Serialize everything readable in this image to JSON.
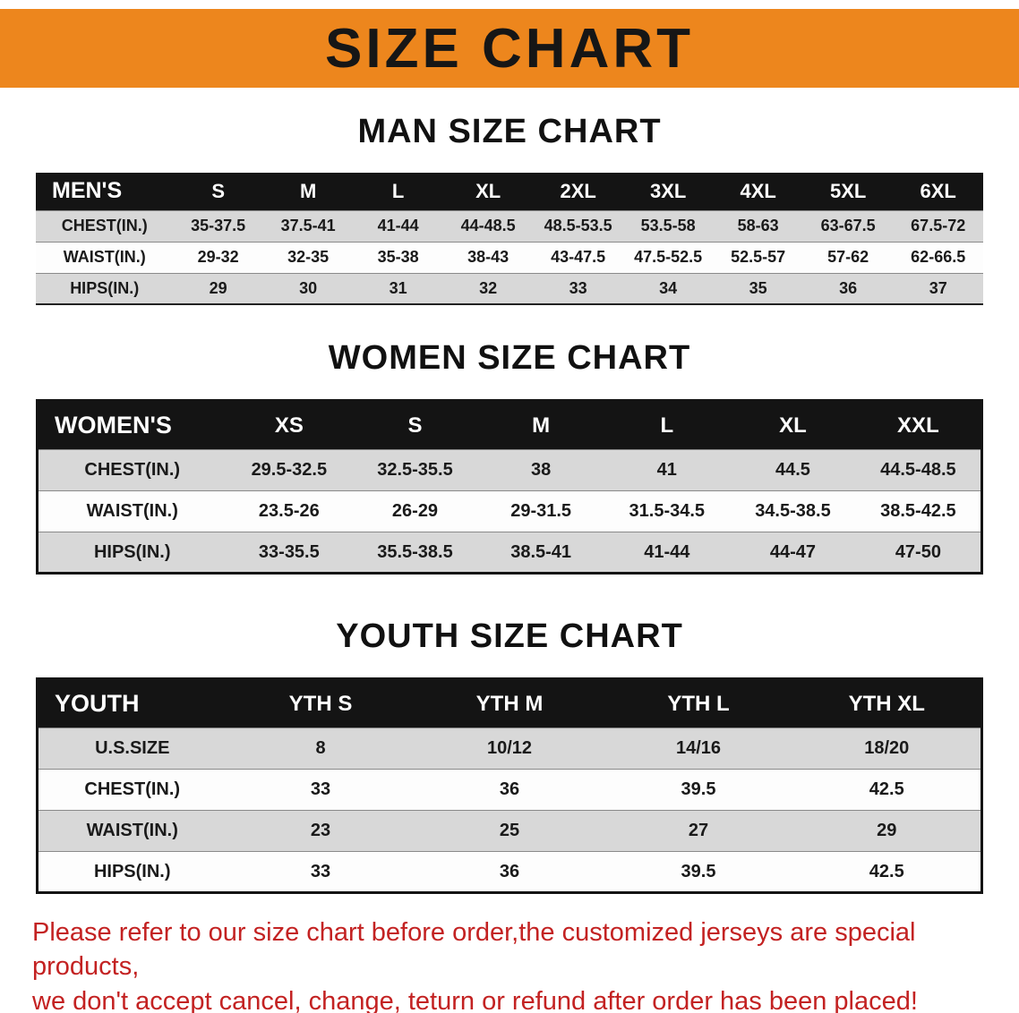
{
  "banner": {
    "title": "SIZE CHART"
  },
  "chart_data": [
    {
      "type": "table",
      "title": "MAN SIZE CHART",
      "columns": [
        "MEN'S",
        "S",
        "M",
        "L",
        "XL",
        "2XL",
        "3XL",
        "4XL",
        "5XL",
        "6XL"
      ],
      "rows": [
        [
          "CHEST(IN.)",
          "35-37.5",
          "37.5-41",
          "41-44",
          "44-48.5",
          "48.5-53.5",
          "53.5-58",
          "58-63",
          "63-67.5",
          "67.5-72"
        ],
        [
          "WAIST(IN.)",
          "29-32",
          "32-35",
          "35-38",
          "38-43",
          "43-47.5",
          "47.5-52.5",
          "52.5-57",
          "57-62",
          "62-66.5"
        ],
        [
          "HIPS(IN.)",
          "29",
          "30",
          "31",
          "32",
          "33",
          "34",
          "35",
          "36",
          "37"
        ]
      ]
    },
    {
      "type": "table",
      "title": "WOMEN SIZE CHART",
      "columns": [
        "WOMEN'S",
        "XS",
        "S",
        "M",
        "L",
        "XL",
        "XXL"
      ],
      "rows": [
        [
          "CHEST(IN.)",
          "29.5-32.5",
          "32.5-35.5",
          "38",
          "41",
          "44.5",
          "44.5-48.5"
        ],
        [
          "WAIST(IN.)",
          "23.5-26",
          "26-29",
          "29-31.5",
          "31.5-34.5",
          "34.5-38.5",
          "38.5-42.5"
        ],
        [
          "HIPS(IN.)",
          "33-35.5",
          "35.5-38.5",
          "38.5-41",
          "41-44",
          "44-47",
          "47-50"
        ]
      ]
    },
    {
      "type": "table",
      "title": "YOUTH SIZE CHART",
      "columns": [
        "YOUTH",
        "YTH S",
        "YTH M",
        "YTH L",
        "YTH XL"
      ],
      "rows": [
        [
          "U.S.SIZE",
          "8",
          "10/12",
          "14/16",
          "18/20"
        ],
        [
          "CHEST(IN.)",
          "33",
          "36",
          "39.5",
          "42.5"
        ],
        [
          "WAIST(IN.)",
          "23",
          "25",
          "27",
          "29"
        ],
        [
          "HIPS(IN.)",
          "33",
          "36",
          "39.5",
          "42.5"
        ]
      ]
    }
  ],
  "footer": {
    "line1": "Please refer to our size chart before order,the customized jerseys are special products,",
    "line2": "we don't accept cancel, change, teturn or refund after order has been placed!"
  },
  "colors": {
    "banner_bg": "#ed861d",
    "banner_text": "#161616",
    "header_row_bg": "#141414",
    "header_row_text": "#ffffff",
    "row_alt_bg": "#d8d8d8",
    "row_bg": "#fdfdfd",
    "footer_text": "#c32222",
    "heading_text": "#111111"
  }
}
